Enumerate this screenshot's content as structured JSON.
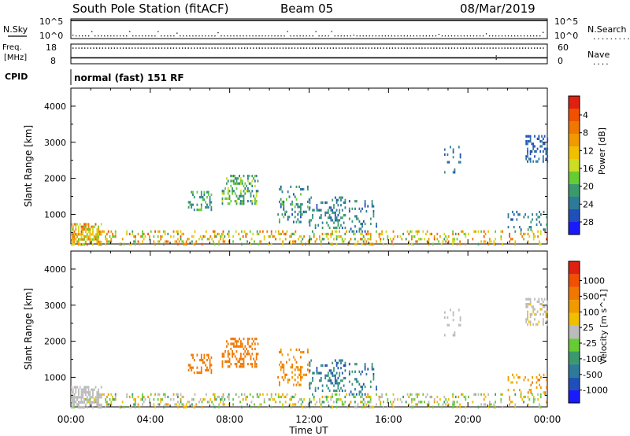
{
  "header": {
    "station": "South Pole Station (fitACF)",
    "beam": "Beam 05",
    "date": "08/Mar/2019"
  },
  "noise_panel": {
    "left_label": "N.Sky",
    "right_label": "N.Search",
    "right_line": ".........",
    "tick_top": "10^5",
    "tick_bottom": "10^0",
    "sky_level": 4.6,
    "search_level": 0.2
  },
  "freq_panel": {
    "left_label_1": "Freq.",
    "left_label_2": "[MHz]",
    "tick_top": "18",
    "tick_bottom": "8",
    "right_label": "Nave",
    "right_line": "....",
    "right_tick_top": "60",
    "right_tick_bottom": "0",
    "freq_level": 11.0,
    "nave_level": 47
  },
  "cpid": {
    "label": "CPID",
    "value": "normal (fast) 151 RF"
  },
  "chart_data": [
    {
      "type": "heatmap",
      "quantity": "Power",
      "ylabel": "Slant Range [km]",
      "xlabel": "Time UT",
      "ylim": [
        180,
        4500
      ],
      "yticks": [
        "1000",
        "2000",
        "3000",
        "4000"
      ],
      "xticks": [
        "00:00",
        "04:00",
        "08:00",
        "12:00",
        "16:00",
        "20:00",
        "00:00"
      ],
      "colorbar": {
        "label": "Power [dB]",
        "ticks": [
          "4",
          "8",
          "12",
          "16",
          "20",
          "24",
          "28"
        ],
        "colors": [
          "#1a1aff",
          "#1f4fb8",
          "#2d7a9a",
          "#3a9a6e",
          "#66cc33",
          "#ccdd22",
          "#f0c000",
          "#f09a00",
          "#f07800",
          "#f05000",
          "#e02010"
        ]
      },
      "echo_regions": [
        {
          "t0": 0.0,
          "t1": 24.0,
          "r0": 180,
          "r1": 560,
          "density": 0.22,
          "level": [
            0.3,
            0.9
          ]
        },
        {
          "t0": 0.0,
          "t1": 1.5,
          "r0": 180,
          "r1": 760,
          "density": 0.6,
          "level": [
            0.4,
            0.9
          ]
        },
        {
          "t0": 5.9,
          "t1": 7.1,
          "r0": 1100,
          "r1": 1650,
          "density": 0.35,
          "level": [
            0.15,
            0.45
          ]
        },
        {
          "t0": 7.6,
          "t1": 9.4,
          "r0": 1300,
          "r1": 2100,
          "density": 0.38,
          "level": [
            0.15,
            0.5
          ]
        },
        {
          "t0": 10.4,
          "t1": 12.0,
          "r0": 800,
          "r1": 1800,
          "density": 0.2,
          "level": [
            0.1,
            0.4
          ]
        },
        {
          "t0": 12.0,
          "t1": 13.8,
          "r0": 650,
          "r1": 1500,
          "density": 0.25,
          "level": [
            0.1,
            0.35
          ]
        },
        {
          "t0": 14.0,
          "t1": 15.4,
          "r0": 500,
          "r1": 1400,
          "density": 0.2,
          "level": [
            0.1,
            0.3
          ]
        },
        {
          "t0": 18.8,
          "t1": 19.6,
          "r0": 2200,
          "r1": 2900,
          "density": 0.12,
          "level": [
            0.1,
            0.3
          ]
        },
        {
          "t0": 22.9,
          "t1": 24.0,
          "r0": 2500,
          "r1": 3200,
          "density": 0.3,
          "level": [
            0.05,
            0.25
          ]
        },
        {
          "t0": 22.0,
          "t1": 24.0,
          "r0": 600,
          "r1": 1100,
          "density": 0.15,
          "level": [
            0.1,
            0.3
          ]
        }
      ]
    },
    {
      "type": "heatmap",
      "quantity": "Velocity",
      "ylabel": "Slant Range [km]",
      "xlabel": "Time UT",
      "ylim": [
        180,
        4500
      ],
      "yticks": [
        "1000",
        "2000",
        "3000",
        "4000"
      ],
      "xticks": [
        "00:00",
        "04:00",
        "08:00",
        "12:00",
        "16:00",
        "20:00",
        "00:00"
      ],
      "colorbar": {
        "label": "Velocity [m s^-1]",
        "ticks": [
          "1000",
          "500",
          "100",
          "25",
          "-25",
          "-100",
          "-500",
          "-1000"
        ],
        "colors": [
          "#1a1aff",
          "#1f4fb8",
          "#2d7a9a",
          "#3a9a6e",
          "#66cc33",
          "#bbbbbb",
          "#f0c000",
          "#f09a00",
          "#f07800",
          "#f05000",
          "#e02010"
        ]
      },
      "echo_regions": [
        {
          "t0": 0.0,
          "t1": 24.0,
          "r0": 180,
          "r1": 560,
          "density": 0.22,
          "level": [
            0.3,
            0.7
          ]
        },
        {
          "t0": 0.0,
          "t1": 1.5,
          "r0": 180,
          "r1": 760,
          "density": 0.6,
          "level": [
            0.45,
            0.55
          ]
        },
        {
          "t0": 5.9,
          "t1": 7.1,
          "r0": 1100,
          "r1": 1650,
          "density": 0.35,
          "level": [
            0.75,
            0.85
          ]
        },
        {
          "t0": 7.6,
          "t1": 9.4,
          "r0": 1300,
          "r1": 2100,
          "density": 0.38,
          "level": [
            0.75,
            0.85
          ]
        },
        {
          "t0": 10.4,
          "t1": 12.0,
          "r0": 800,
          "r1": 1800,
          "density": 0.2,
          "level": [
            0.65,
            0.85
          ]
        },
        {
          "t0": 12.0,
          "t1": 13.8,
          "r0": 650,
          "r1": 1500,
          "density": 0.25,
          "level": [
            0.1,
            0.3
          ]
        },
        {
          "t0": 14.0,
          "t1": 15.4,
          "r0": 500,
          "r1": 1400,
          "density": 0.2,
          "level": [
            0.1,
            0.3
          ]
        },
        {
          "t0": 18.8,
          "t1": 19.6,
          "r0": 2200,
          "r1": 2900,
          "density": 0.12,
          "level": [
            0.45,
            0.55
          ]
        },
        {
          "t0": 22.9,
          "t1": 24.0,
          "r0": 2500,
          "r1": 3200,
          "density": 0.3,
          "level": [
            0.45,
            0.6
          ]
        },
        {
          "t0": 22.0,
          "t1": 24.0,
          "r0": 600,
          "r1": 1100,
          "density": 0.15,
          "level": [
            0.6,
            0.8
          ]
        }
      ]
    }
  ]
}
